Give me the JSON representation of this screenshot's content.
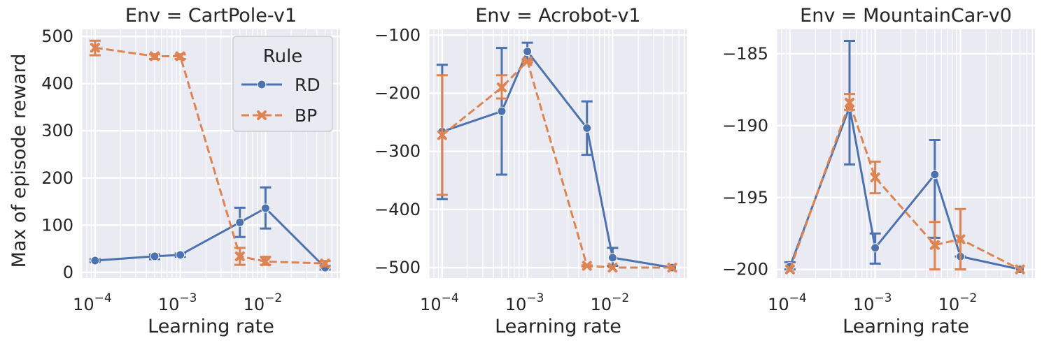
{
  "chart_data": [
    {
      "type": "line",
      "title": "Env = CartPole-v1",
      "xlabel": "Learning rate",
      "ylabel": "Max of episode reward",
      "xscale": "log",
      "xlim": [
        7e-05,
        0.075
      ],
      "ylim": [
        -12,
        515
      ],
      "x_ticks": [
        {
          "value": 0.0001,
          "mantissa": "10",
          "exponent": "−4"
        },
        {
          "value": 0.001,
          "mantissa": "10",
          "exponent": "−3"
        },
        {
          "value": 0.01,
          "mantissa": "10",
          "exponent": "−2"
        }
      ],
      "y_ticks": [
        {
          "value": 0,
          "label": "0"
        },
        {
          "value": 100,
          "label": "100"
        },
        {
          "value": 200,
          "label": "200"
        },
        {
          "value": 300,
          "label": "300"
        },
        {
          "value": 400,
          "label": "400"
        },
        {
          "value": 500,
          "label": "500"
        }
      ],
      "grid": true,
      "legend": {
        "title": "Rule",
        "placement": "top-right"
      },
      "series": [
        {
          "name": "RD",
          "color": "#4c72b0",
          "marker": "circle",
          "linestyle": "solid",
          "x": [
            0.0001,
            0.0005,
            0.001,
            0.005,
            0.01,
            0.05
          ],
          "y": [
            25,
            34,
            37,
            106,
            136,
            10
          ],
          "err_low": [
            22,
            28,
            33,
            75,
            93,
            6
          ],
          "err_high": [
            28,
            38,
            40,
            137,
            180,
            14
          ]
        },
        {
          "name": "BP",
          "color": "#dd8452",
          "marker": "x",
          "linestyle": "dashed",
          "x": [
            0.0001,
            0.0005,
            0.001,
            0.005,
            0.01,
            0.05
          ],
          "y": [
            476,
            458,
            458,
            34,
            23,
            19
          ],
          "err_low": [
            460,
            452,
            452,
            16,
            16,
            13
          ],
          "err_high": [
            491,
            462,
            462,
            52,
            33,
            24
          ]
        }
      ]
    },
    {
      "type": "line",
      "title": "Env = Acrobot-v1",
      "xlabel": "Learning rate",
      "ylabel": "",
      "xscale": "log",
      "xlim": [
        7e-05,
        0.075
      ],
      "ylim": [
        -518,
        -90
      ],
      "x_ticks": [
        {
          "value": 0.0001,
          "mantissa": "10",
          "exponent": "−4"
        },
        {
          "value": 0.001,
          "mantissa": "10",
          "exponent": "−3"
        },
        {
          "value": 0.01,
          "mantissa": "10",
          "exponent": "−2"
        }
      ],
      "y_ticks": [
        {
          "value": -100,
          "label": "−100"
        },
        {
          "value": -200,
          "label": "−200"
        },
        {
          "value": -300,
          "label": "−300"
        },
        {
          "value": -400,
          "label": "−400"
        },
        {
          "value": -500,
          "label": "−500"
        }
      ],
      "grid": true,
      "series": [
        {
          "name": "RD",
          "color": "#4c72b0",
          "marker": "circle",
          "linestyle": "solid",
          "x": [
            0.0001,
            0.0005,
            0.001,
            0.005,
            0.01,
            0.05
          ],
          "y": [
            -266,
            -231,
            -128,
            -260,
            -483,
            -500
          ],
          "err_low": [
            -382,
            -340,
            -142,
            -306,
            -497,
            -500
          ],
          "err_high": [
            -151,
            -122,
            -113,
            -214,
            -466,
            -500
          ]
        },
        {
          "name": "BP",
          "color": "#dd8452",
          "marker": "x",
          "linestyle": "dashed",
          "x": [
            0.0001,
            0.0005,
            0.001,
            0.005,
            0.01,
            0.05
          ],
          "y": [
            -272,
            -190,
            -145,
            -497,
            -500,
            -500
          ],
          "err_low": [
            -375,
            -209,
            -147,
            -498,
            -500,
            -500
          ],
          "err_high": [
            -169,
            -169,
            -143,
            -496,
            -500,
            -500
          ]
        }
      ]
    },
    {
      "type": "line",
      "title": "Env = MountainCar-v0",
      "xlabel": "Learning rate",
      "ylabel": "",
      "xscale": "log",
      "xlim": [
        7e-05,
        0.075
      ],
      "ylim": [
        -200.6,
        -183.3
      ],
      "x_ticks": [
        {
          "value": 0.0001,
          "mantissa": "10",
          "exponent": "−4"
        },
        {
          "value": 0.001,
          "mantissa": "10",
          "exponent": "−3"
        },
        {
          "value": 0.01,
          "mantissa": "10",
          "exponent": "−2"
        }
      ],
      "y_ticks": [
        {
          "value": -185,
          "label": "−185"
        },
        {
          "value": -190,
          "label": "−190"
        },
        {
          "value": -195,
          "label": "−195"
        },
        {
          "value": -200,
          "label": "−200"
        }
      ],
      "grid": true,
      "series": [
        {
          "name": "RD",
          "color": "#4c72b0",
          "marker": "circle",
          "linestyle": "solid",
          "x": [
            0.0001,
            0.0005,
            0.001,
            0.005,
            0.01,
            0.05
          ],
          "y": [
            -199.8,
            -188.7,
            -198.5,
            -193.4,
            -199.1,
            -200
          ],
          "err_low": [
            -200,
            -192.7,
            -199.6,
            -197.8,
            -200,
            -200
          ],
          "err_high": [
            -199.5,
            -184.1,
            -197.5,
            -191.0,
            -199.1,
            -200
          ]
        },
        {
          "name": "BP",
          "color": "#dd8452",
          "marker": "x",
          "linestyle": "dashed",
          "x": [
            0.0001,
            0.0005,
            0.001,
            0.005,
            0.01,
            0.05
          ],
          "y": [
            -200,
            -188.4,
            -193.6,
            -198.3,
            -197.9,
            -200
          ],
          "err_low": [
            -200,
            -188.9,
            -194.7,
            -200,
            -200,
            -200
          ],
          "err_high": [
            -200,
            -187.8,
            -192.5,
            -196.7,
            -195.8,
            -200
          ]
        }
      ]
    }
  ]
}
